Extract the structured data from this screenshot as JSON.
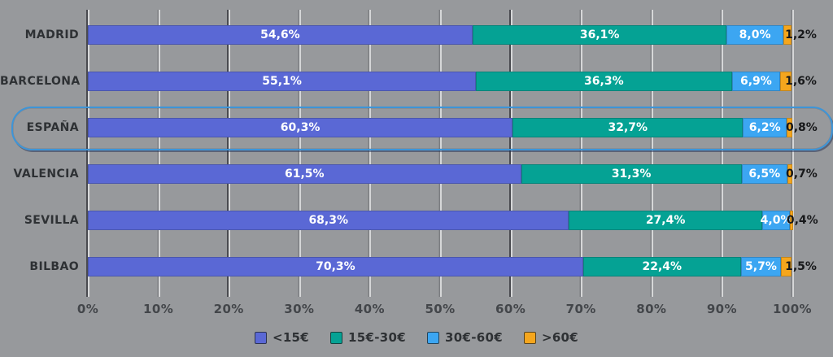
{
  "chart_data": {
    "type": "bar",
    "variant": "horizontal-stacked",
    "categories": [
      "MADRID",
      "BARCELONA",
      "ESPAÑA",
      "VALENCIA",
      "SEVILLA",
      "BILBAO"
    ],
    "series": [
      {
        "name": "<15€",
        "color": "#5a68d5",
        "values": [
          54.6,
          55.1,
          60.3,
          61.5,
          68.3,
          70.3
        ]
      },
      {
        "name": "15€-30€",
        "color": "#05a294",
        "values": [
          36.1,
          36.3,
          32.7,
          31.3,
          27.4,
          22.4
        ]
      },
      {
        "name": "30€-60€",
        "color": "#3ca6f2",
        "values": [
          8.0,
          6.9,
          6.2,
          6.5,
          4.0,
          5.7
        ]
      },
      {
        "name": ">60€",
        "color": "#f5a61d",
        "values": [
          1.2,
          1.6,
          0.8,
          0.7,
          0.4,
          1.5
        ]
      }
    ],
    "x_ticks": [
      "0%",
      "10%",
      "20%",
      "30%",
      "40%",
      "50%",
      "60%",
      "70%",
      "80%",
      "90%",
      "100%"
    ],
    "xlim": [
      0,
      100
    ],
    "value_suffix": "%",
    "decimal_separator": ",",
    "grid": true,
    "legend_position": "bottom",
    "highlighted_category": "ESPAÑA",
    "last_series_label_outside": true
  },
  "colors": {
    "background": "#97999c",
    "grid_line": "#d6d7d8",
    "category_text": "#2e3134",
    "axis_text": "#43464a",
    "inside_value_text": "#ffffff",
    "outside_value_text": "#17181a",
    "highlight_border": "#3d95d8"
  }
}
